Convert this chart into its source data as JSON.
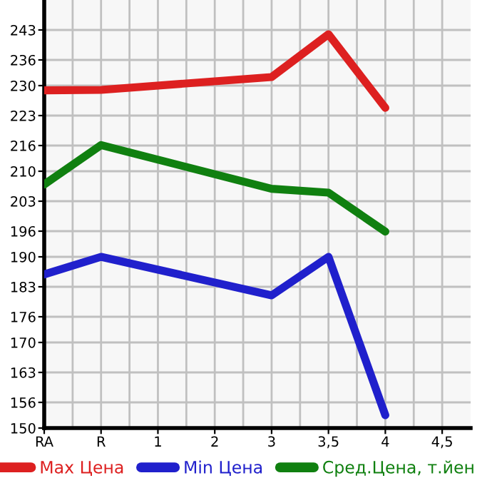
{
  "chart_data": {
    "type": "line",
    "categories": [
      "RA",
      "R",
      "1",
      "2",
      "3",
      "3,5",
      "4",
      "4,5"
    ],
    "series": [
      {
        "name": "Max Цена",
        "color": "#dd2020",
        "values": [
          228.9,
          229,
          null,
          null,
          232,
          242,
          224.8,
          null
        ]
      },
      {
        "name": "Min Цена",
        "color": "#2020cc",
        "values": [
          185.9,
          190,
          null,
          null,
          181,
          190,
          153,
          null
        ]
      },
      {
        "name": "Сред.Цена, т.йен",
        "color": "#108010",
        "values": [
          206.9,
          216.1,
          null,
          null,
          205.9,
          205,
          195.9,
          null
        ]
      }
    ],
    "ylim": [
      150,
      250
    ],
    "yticks": [
      150,
      156,
      163,
      170,
      176,
      183,
      190,
      196,
      203,
      210,
      216,
      223,
      230,
      236,
      243
    ],
    "grid": true,
    "legend": "bottom",
    "marker": "none",
    "line_style": "solid"
  }
}
